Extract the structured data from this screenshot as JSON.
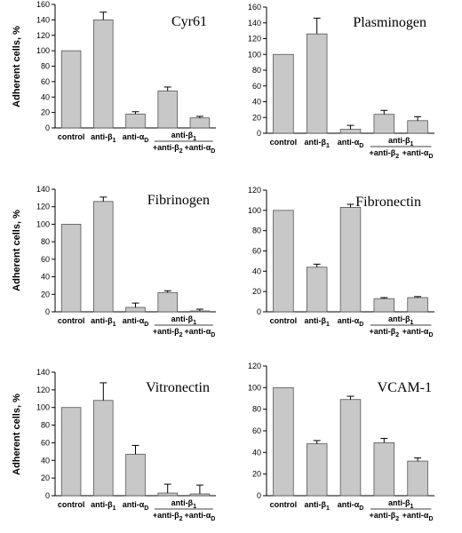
{
  "chart_data": [
    {
      "type": "bar",
      "title": "Cyr61",
      "ylabel": "Adherent cells, %",
      "ylim": [
        0,
        160
      ],
      "yticks": [
        0,
        20,
        40,
        60,
        80,
        100,
        120,
        140,
        160
      ],
      "categories": [
        {
          "label": "control"
        },
        {
          "label": "anti-",
          "greek": "β",
          "sub": "1"
        },
        {
          "label": "anti-",
          "greek": "α",
          "sub": "D"
        },
        {
          "label": "+anti-",
          "greek": "β",
          "sub": "2"
        },
        {
          "label": "+anti-",
          "greek": "α",
          "sub": "D"
        }
      ],
      "group_label": {
        "label": "anti-",
        "greek": "β",
        "sub": "1"
      },
      "values": [
        100,
        140,
        18,
        48,
        13
      ],
      "errors": [
        0,
        10,
        3,
        5,
        2
      ]
    },
    {
      "type": "bar",
      "title": "Plasminogen",
      "ylabel": "",
      "ylim": [
        0,
        160
      ],
      "yticks": [
        0,
        20,
        40,
        60,
        80,
        100,
        120,
        140,
        160
      ],
      "categories": [
        {
          "label": "control"
        },
        {
          "label": "anti-",
          "greek": "β",
          "sub": "1"
        },
        {
          "label": "anti-",
          "greek": "α",
          "sub": "D"
        },
        {
          "label": "+anti-",
          "greek": "β",
          "sub": "2"
        },
        {
          "label": "+anti-",
          "greek": "α",
          "sub": "D"
        }
      ],
      "group_label": {
        "label": "anti-",
        "greek": "β",
        "sub": "1"
      },
      "values": [
        100,
        126,
        5,
        24,
        16
      ],
      "errors": [
        0,
        20,
        5,
        5,
        5
      ]
    },
    {
      "type": "bar",
      "title": "Fibrinogen",
      "ylabel": "Adherent cells, %",
      "ylim": [
        0,
        140
      ],
      "yticks": [
        0,
        20,
        40,
        60,
        80,
        100,
        120,
        140
      ],
      "categories": [
        {
          "label": "control"
        },
        {
          "label": "anti-",
          "greek": "β",
          "sub": "1"
        },
        {
          "label": "anti-",
          "greek": "α",
          "sub": "D"
        },
        {
          "label": "+anti-",
          "greek": "β",
          "sub": "2"
        },
        {
          "label": "+anti-",
          "greek": "α",
          "sub": "D"
        }
      ],
      "group_label": {
        "label": "anti-",
        "greek": "β",
        "sub": "1"
      },
      "values": [
        100,
        126,
        5,
        22,
        1
      ],
      "errors": [
        0,
        5,
        5,
        2,
        2
      ]
    },
    {
      "type": "bar",
      "title": "Fibronectin",
      "ylabel": "",
      "ylim": [
        0,
        120
      ],
      "yticks": [
        0,
        20,
        40,
        60,
        80,
        100,
        120
      ],
      "categories": [
        {
          "label": "control"
        },
        {
          "label": "anti-",
          "greek": "β",
          "sub": "1"
        },
        {
          "label": "anti-",
          "greek": "α",
          "sub": "D"
        },
        {
          "label": "+anti-",
          "greek": "β",
          "sub": "2"
        },
        {
          "label": "+anti-",
          "greek": "α",
          "sub": "D"
        }
      ],
      "group_label": {
        "label": "anti-",
        "greek": "β",
        "sub": "1"
      },
      "values": [
        100,
        44,
        103,
        13,
        14
      ],
      "errors": [
        0,
        3,
        3,
        1,
        1
      ]
    },
    {
      "type": "bar",
      "title": "Vitronectin",
      "ylabel": "Adherent cells, %",
      "ylim": [
        0,
        140
      ],
      "yticks": [
        0,
        20,
        40,
        60,
        80,
        100,
        120,
        140
      ],
      "categories": [
        {
          "label": "control"
        },
        {
          "label": "anti-",
          "greek": "β",
          "sub": "1"
        },
        {
          "label": "anti-",
          "greek": "α",
          "sub": "D"
        },
        {
          "label": "+anti-",
          "greek": "β",
          "sub": "2"
        },
        {
          "label": "+anti-",
          "greek": "α",
          "sub": "D"
        }
      ],
      "group_label": {
        "label": "anti-",
        "greek": "β",
        "sub": "1"
      },
      "values": [
        100,
        108,
        47,
        3,
        2
      ],
      "errors": [
        0,
        20,
        10,
        10,
        10
      ]
    },
    {
      "type": "bar",
      "title": "VCAM-1",
      "ylabel": "",
      "ylim": [
        0,
        120
      ],
      "yticks": [
        0,
        20,
        40,
        60,
        80,
        100,
        120
      ],
      "categories": [
        {
          "label": "control"
        },
        {
          "label": "anti-",
          "greek": "β",
          "sub": "1"
        },
        {
          "label": "anti-",
          "greek": "α",
          "sub": "D"
        },
        {
          "label": "+anti-",
          "greek": "β",
          "sub": "2"
        },
        {
          "label": "+anti-",
          "greek": "α",
          "sub": "D"
        }
      ],
      "group_label": {
        "label": "anti-",
        "greek": "β",
        "sub": "1"
      },
      "values": [
        100,
        48,
        89,
        49,
        32
      ],
      "errors": [
        0,
        3,
        3,
        4,
        3
      ]
    }
  ],
  "colors": {
    "bar_fill": "#c8c8c8",
    "bar_stroke": "#555555",
    "axis": "#000000"
  }
}
